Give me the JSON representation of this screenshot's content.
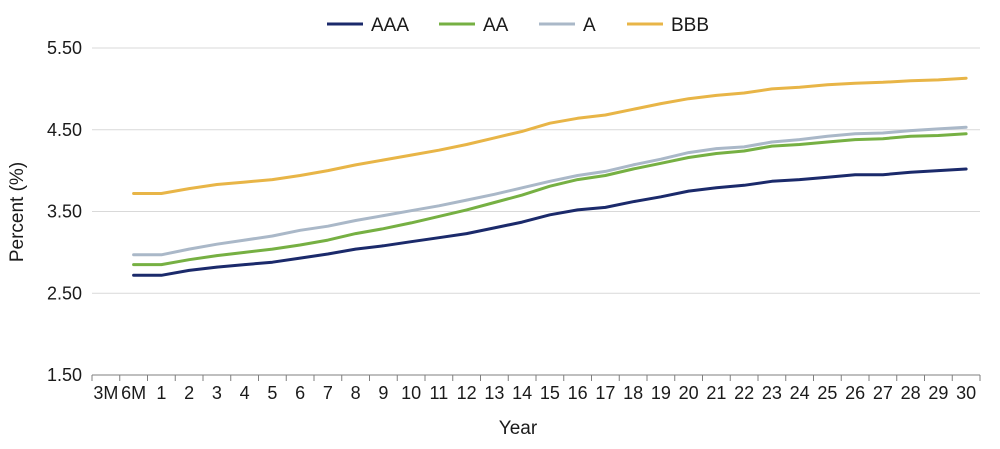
{
  "chart_data": {
    "type": "line",
    "xlabel": "Year",
    "ylabel": "Percent (%)",
    "ylim": [
      1.5,
      5.5
    ],
    "yticks": [
      "5.50",
      "4.50",
      "3.50",
      "2.50",
      "1.50"
    ],
    "ytick_values": [
      5.5,
      4.5,
      3.5,
      2.5,
      1.5
    ],
    "categories": [
      "3M",
      "6M",
      "1",
      "2",
      "3",
      "4",
      "5",
      "6",
      "7",
      "8",
      "9",
      "10",
      "11",
      "12",
      "13",
      "14",
      "15",
      "16",
      "17",
      "18",
      "19",
      "20",
      "21",
      "22",
      "23",
      "24",
      "25",
      "26",
      "27",
      "28",
      "29",
      "30"
    ],
    "grid": "horizontal",
    "legend_position": "top",
    "series": [
      {
        "name": "AAA",
        "color": "#1b2a6b",
        "values": [
          null,
          2.72,
          2.72,
          2.78,
          2.82,
          2.85,
          2.88,
          2.93,
          2.98,
          3.04,
          3.08,
          3.13,
          3.18,
          3.23,
          3.3,
          3.37,
          3.46,
          3.52,
          3.55,
          3.62,
          3.68,
          3.75,
          3.79,
          3.82,
          3.87,
          3.89,
          3.92,
          3.95,
          3.95,
          3.98,
          4.0,
          4.02
        ]
      },
      {
        "name": "AA",
        "color": "#76b043",
        "values": [
          null,
          2.85,
          2.85,
          2.91,
          2.96,
          3.0,
          3.04,
          3.09,
          3.15,
          3.23,
          3.29,
          3.36,
          3.44,
          3.52,
          3.61,
          3.7,
          3.81,
          3.89,
          3.94,
          4.02,
          4.09,
          4.16,
          4.21,
          4.24,
          4.3,
          4.32,
          4.35,
          4.38,
          4.39,
          4.42,
          4.43,
          4.45
        ]
      },
      {
        "name": "A",
        "color": "#aab8c8",
        "values": [
          null,
          2.97,
          2.97,
          3.04,
          3.1,
          3.15,
          3.2,
          3.27,
          3.32,
          3.39,
          3.45,
          3.51,
          3.57,
          3.64,
          3.71,
          3.79,
          3.87,
          3.94,
          3.99,
          4.07,
          4.14,
          4.22,
          4.27,
          4.29,
          4.35,
          4.38,
          4.42,
          4.45,
          4.46,
          4.49,
          4.51,
          4.53
        ]
      },
      {
        "name": "BBB",
        "color": "#e8b547",
        "values": [
          null,
          3.72,
          3.72,
          3.78,
          3.83,
          3.86,
          3.89,
          3.94,
          4.0,
          4.07,
          4.13,
          4.19,
          4.25,
          4.32,
          4.4,
          4.48,
          4.58,
          4.64,
          4.68,
          4.75,
          4.82,
          4.88,
          4.92,
          4.95,
          5.0,
          5.02,
          5.05,
          5.07,
          5.08,
          5.1,
          5.11,
          5.13
        ]
      }
    ]
  }
}
